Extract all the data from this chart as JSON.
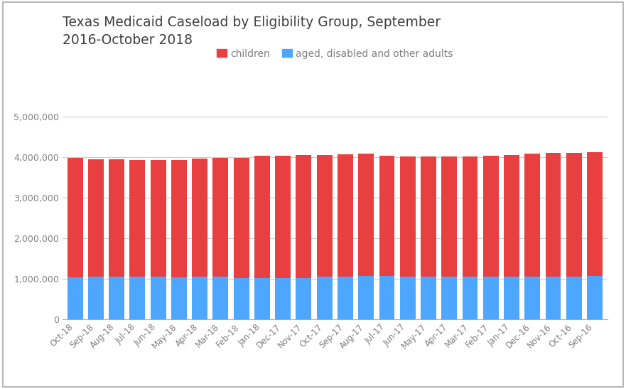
{
  "title": "Texas Medicaid Caseload by Eligibility Group, September\n2016-October 2018",
  "categories": [
    "Oct-18",
    "Sep-18",
    "Aug-18",
    "Jul-18",
    "Jun-18",
    "May-18",
    "Apr-18",
    "Mar-18",
    "Feb-18",
    "Jan-18",
    "Dec-17",
    "Nov-17",
    "Oct-17",
    "Sep-17",
    "Aug-17",
    "Jul-17",
    "Jun-17",
    "May-17",
    "Apr-17",
    "Mar-17",
    "Feb-17",
    "Jan-17",
    "Dec-16",
    "Nov-16",
    "Oct-16",
    "Sep-16"
  ],
  "children": [
    2950000,
    2900000,
    2900000,
    2890000,
    2890000,
    2900000,
    2920000,
    2950000,
    2970000,
    3010000,
    3020000,
    3030000,
    3020000,
    3020000,
    3020000,
    2980000,
    2970000,
    2970000,
    2970000,
    2970000,
    2990000,
    3010000,
    3040000,
    3060000,
    3060000,
    3060000
  ],
  "adults": [
    1030000,
    1040000,
    1040000,
    1040000,
    1040000,
    1030000,
    1040000,
    1040000,
    1020000,
    1020000,
    1020000,
    1020000,
    1040000,
    1050000,
    1060000,
    1060000,
    1050000,
    1040000,
    1040000,
    1040000,
    1040000,
    1040000,
    1040000,
    1040000,
    1050000,
    1060000
  ],
  "children_color": "#e84040",
  "adults_color": "#4da6ff",
  "background_color": "#ffffff",
  "grid_color": "#cccccc",
  "title_color": "#404040",
  "tick_color": "#808080",
  "legend_labels": [
    "children",
    "aged, disabled and other adults"
  ],
  "ylim": [
    0,
    5000000
  ],
  "yticks": [
    0,
    1000000,
    2000000,
    3000000,
    4000000,
    5000000
  ],
  "border_color": "#aaaaaa",
  "bar_width": 0.75
}
